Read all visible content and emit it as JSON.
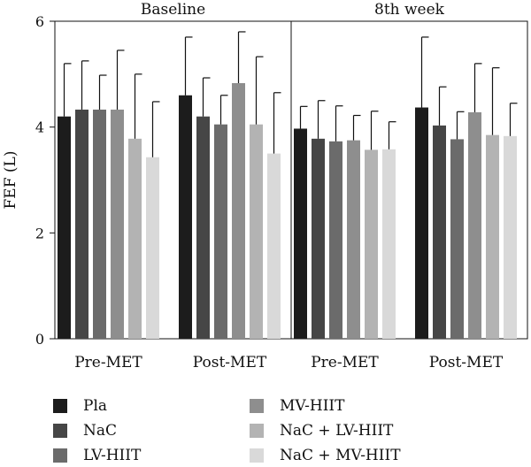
{
  "chart_data": {
    "type": "bar",
    "ylabel": "FEF (L)",
    "ylim": [
      0,
      6
    ],
    "yticks": [
      0,
      2,
      4,
      6
    ],
    "grid": false,
    "legend_position": "bottom",
    "panels": [
      {
        "title": "Baseline",
        "categories": [
          "Pre-MET",
          "Post-MET"
        ],
        "series": [
          {
            "name": "Pla",
            "values": [
              4.2,
              4.6
            ],
            "errors": [
              1.0,
              1.1
            ]
          },
          {
            "name": "NaC",
            "values": [
              4.33,
              4.2
            ],
            "errors": [
              0.92,
              0.73
            ]
          },
          {
            "name": "LV-HIIT",
            "values": [
              4.33,
              4.05
            ],
            "errors": [
              0.65,
              0.55
            ]
          },
          {
            "name": "MV-HIIT",
            "values": [
              4.33,
              4.83
            ],
            "errors": [
              1.12,
              0.97
            ]
          },
          {
            "name": "NaC + LV-HIIT",
            "values": [
              3.78,
              4.05
            ],
            "errors": [
              1.22,
              1.28
            ]
          },
          {
            "name": "NaC + MV-HIIT",
            "values": [
              3.43,
              3.5
            ],
            "errors": [
              1.05,
              1.15
            ]
          }
        ]
      },
      {
        "title": "8th week",
        "categories": [
          "Pre-MET",
          "Post-MET"
        ],
        "series": [
          {
            "name": "Pla",
            "values": [
              3.97,
              4.37
            ],
            "errors": [
              0.42,
              1.33
            ]
          },
          {
            "name": "NaC",
            "values": [
              3.78,
              4.03
            ],
            "errors": [
              0.72,
              0.73
            ]
          },
          {
            "name": "LV-HIIT",
            "values": [
              3.73,
              3.77
            ],
            "errors": [
              0.67,
              0.52
            ]
          },
          {
            "name": "MV-HIIT",
            "values": [
              3.75,
              4.28
            ],
            "errors": [
              0.47,
              0.92
            ]
          },
          {
            "name": "NaC + LV-HIIT",
            "values": [
              3.57,
              3.85
            ],
            "errors": [
              0.73,
              1.27
            ]
          },
          {
            "name": "NaC + MV-HIIT",
            "values": [
              3.58,
              3.83
            ],
            "errors": [
              0.52,
              0.62
            ]
          }
        ]
      }
    ],
    "colors": [
      "#1c1c1c",
      "#464646",
      "#6b6b6b",
      "#8e8e8e",
      "#b3b3b3",
      "#d9d9d9"
    ]
  },
  "legend": {
    "items": [
      {
        "label": "Pla",
        "color": "#1c1c1c"
      },
      {
        "label": "NaC",
        "color": "#464646"
      },
      {
        "label": "LV-HIIT",
        "color": "#6b6b6b"
      },
      {
        "label": "MV-HIIT",
        "color": "#8e8e8e"
      },
      {
        "label": "NaC + LV-HIIT",
        "color": "#b3b3b3"
      },
      {
        "label": "NaC + MV-HIIT",
        "color": "#d9d9d9"
      }
    ]
  }
}
